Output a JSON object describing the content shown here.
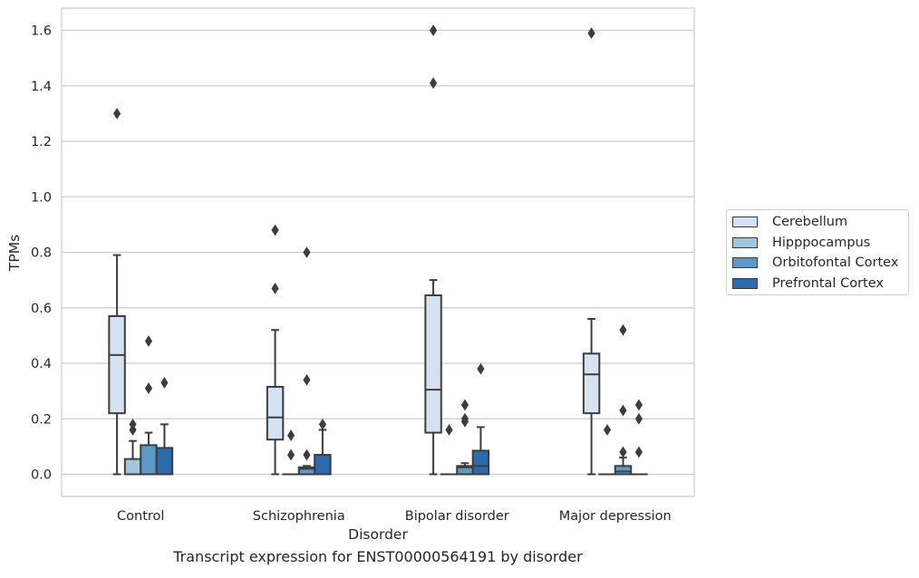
{
  "chart_data": {
    "type": "boxplot",
    "xlabel": "Disorder",
    "ylabel": "TPMs",
    "ylim": [
      -0.08,
      1.68
    ],
    "yticks": [
      "0.0",
      "0.2",
      "0.4",
      "0.6",
      "0.8",
      "1.0",
      "1.2",
      "1.4",
      "1.6"
    ],
    "grid": "horizontal",
    "legend_position": "right",
    "categories": [
      "Control",
      "Schizophrenia",
      "Bipolar disorder",
      "Major depression"
    ],
    "series": [
      {
        "name": "Cerebellum",
        "color": "#d4e2f1",
        "boxes": [
          {
            "q1": 0.22,
            "median": 0.43,
            "q3": 0.57,
            "whisker_low": 0.0,
            "whisker_high": 0.79,
            "outliers": [
              1.3
            ]
          },
          {
            "q1": 0.125,
            "median": 0.205,
            "q3": 0.315,
            "whisker_low": 0.0,
            "whisker_high": 0.52,
            "outliers": [
              0.88,
              0.67
            ]
          },
          {
            "q1": 0.15,
            "median": 0.305,
            "q3": 0.645,
            "whisker_low": 0.0,
            "whisker_high": 0.7,
            "outliers": [
              1.6,
              1.41
            ]
          },
          {
            "q1": 0.22,
            "median": 0.36,
            "q3": 0.435,
            "whisker_low": 0.0,
            "whisker_high": 0.56,
            "outliers": [
              1.59
            ]
          }
        ]
      },
      {
        "name": "Hipppocampus",
        "color": "#9fc5df",
        "boxes": [
          {
            "q1": 0.0,
            "median": 0.0,
            "q3": 0.055,
            "whisker_low": 0.0,
            "whisker_high": 0.12,
            "outliers": [
              0.18,
              0.16
            ]
          },
          {
            "q1": 0.0,
            "median": 0.0,
            "q3": 0.0,
            "whisker_low": 0.0,
            "whisker_high": 0.0,
            "outliers": [
              0.14,
              0.07
            ]
          },
          {
            "q1": 0.0,
            "median": 0.0,
            "q3": 0.0,
            "whisker_low": 0.0,
            "whisker_high": 0.0,
            "outliers": [
              0.16
            ]
          },
          {
            "q1": 0.0,
            "median": 0.0,
            "q3": 0.0,
            "whisker_low": 0.0,
            "whisker_high": 0.0,
            "outliers": [
              0.16
            ]
          }
        ]
      },
      {
        "name": "Orbitofontal Cortex",
        "color": "#5b9ac8",
        "boxes": [
          {
            "q1": 0.0,
            "median": 0.0,
            "q3": 0.105,
            "whisker_low": 0.0,
            "whisker_high": 0.15,
            "outliers": [
              0.48,
              0.31
            ]
          },
          {
            "q1": 0.0,
            "median": 0.02,
            "q3": 0.025,
            "whisker_low": 0.0,
            "whisker_high": 0.03,
            "outliers": [
              0.8,
              0.34,
              0.07
            ]
          },
          {
            "q1": 0.0,
            "median": 0.025,
            "q3": 0.03,
            "whisker_low": 0.0,
            "whisker_high": 0.04,
            "outliers": [
              0.25,
              0.2,
              0.19
            ]
          },
          {
            "q1": 0.0,
            "median": 0.01,
            "q3": 0.03,
            "whisker_low": 0.0,
            "whisker_high": 0.06,
            "outliers": [
              0.52,
              0.23,
              0.08
            ]
          }
        ]
      },
      {
        "name": "Prefrontal Cortex",
        "color": "#2a6cae",
        "boxes": [
          {
            "q1": 0.0,
            "median": 0.0,
            "q3": 0.095,
            "whisker_low": 0.0,
            "whisker_high": 0.18,
            "outliers": [
              0.33
            ]
          },
          {
            "q1": 0.0,
            "median": 0.0,
            "q3": 0.07,
            "whisker_low": 0.0,
            "whisker_high": 0.16,
            "outliers": [
              0.18
            ]
          },
          {
            "q1": 0.0,
            "median": 0.03,
            "q3": 0.085,
            "whisker_low": 0.0,
            "whisker_high": 0.17,
            "outliers": [
              0.38
            ]
          },
          {
            "q1": 0.0,
            "median": 0.0,
            "q3": 0.0,
            "whisker_low": 0.0,
            "whisker_high": 0.0,
            "outliers": [
              0.25,
              0.2,
              0.08
            ]
          }
        ]
      }
    ]
  },
  "caption": "Transcript expression for ENST00000564191 by disorder"
}
